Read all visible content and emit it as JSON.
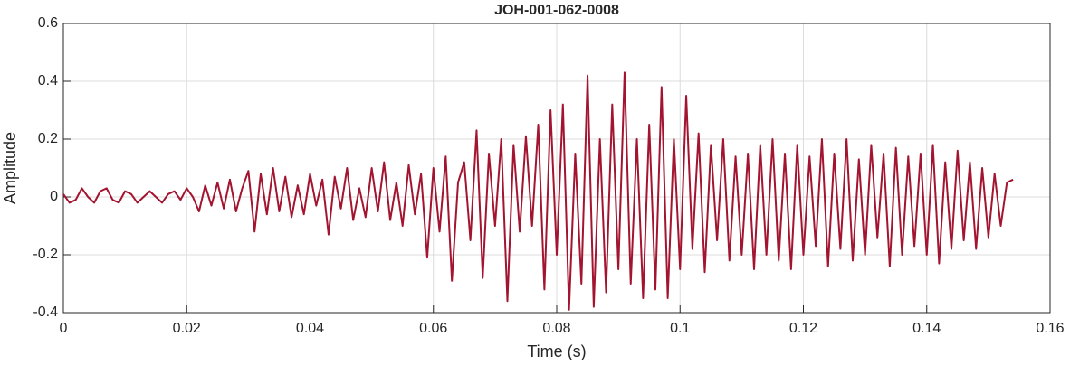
{
  "chart_data": {
    "type": "line",
    "title": "JOH-001-062-0008",
    "xlabel": "Time (s)",
    "ylabel": "Amplitude",
    "color": "#a2142f",
    "grid": true,
    "xlim": [
      0,
      0.16
    ],
    "xticks": [
      0,
      0.02,
      0.04,
      0.06,
      0.08,
      0.1,
      0.12,
      0.14,
      0.16
    ],
    "ylim": [
      -0.4,
      0.6
    ],
    "yticks": [
      -0.4,
      -0.2,
      0,
      0.2,
      0.4,
      0.6
    ],
    "x": [
      0,
      0.001,
      0.002,
      0.003,
      0.004,
      0.005,
      0.006,
      0.007,
      0.008,
      0.009,
      0.01,
      0.011,
      0.012,
      0.013,
      0.014,
      0.015,
      0.016,
      0.017,
      0.018,
      0.019,
      0.02,
      0.021,
      0.022,
      0.023,
      0.024,
      0.025,
      0.026,
      0.027,
      0.028,
      0.029,
      0.03,
      0.031,
      0.032,
      0.033,
      0.034,
      0.035,
      0.036,
      0.037,
      0.038,
      0.039,
      0.04,
      0.041,
      0.042,
      0.043,
      0.044,
      0.045,
      0.046,
      0.047,
      0.048,
      0.049,
      0.05,
      0.051,
      0.052,
      0.053,
      0.054,
      0.055,
      0.056,
      0.057,
      0.058,
      0.059,
      0.06,
      0.061,
      0.062,
      0.063,
      0.064,
      0.065,
      0.066,
      0.067,
      0.068,
      0.069,
      0.07,
      0.071,
      0.072,
      0.073,
      0.074,
      0.075,
      0.076,
      0.077,
      0.078,
      0.079,
      0.08,
      0.081,
      0.082,
      0.083,
      0.084,
      0.085,
      0.086,
      0.087,
      0.088,
      0.089,
      0.09,
      0.091,
      0.092,
      0.093,
      0.094,
      0.095,
      0.096,
      0.097,
      0.098,
      0.099,
      0.1,
      0.101,
      0.102,
      0.103,
      0.104,
      0.105,
      0.106,
      0.107,
      0.108,
      0.109,
      0.11,
      0.111,
      0.112,
      0.113,
      0.114,
      0.115,
      0.116,
      0.117,
      0.118,
      0.119,
      0.12,
      0.121,
      0.122,
      0.123,
      0.124,
      0.125,
      0.126,
      0.127,
      0.128,
      0.129,
      0.13,
      0.131,
      0.132,
      0.133,
      0.134,
      0.135,
      0.136,
      0.137,
      0.138,
      0.139,
      0.14,
      0.141,
      0.142,
      0.143,
      0.144,
      0.145,
      0.146,
      0.147,
      0.148,
      0.149,
      0.15,
      0.151,
      0.152,
      0.153,
      0.154
    ],
    "values": [
      0.01,
      -0.02,
      -0.01,
      0.03,
      0,
      -0.02,
      0.02,
      0.03,
      -0.01,
      -0.02,
      0.02,
      0.01,
      -0.02,
      0,
      0.02,
      0,
      -0.02,
      0.01,
      0.02,
      -0.01,
      0.03,
      0,
      -0.05,
      0.04,
      -0.03,
      0.05,
      -0.04,
      0.06,
      -0.05,
      0.03,
      0.09,
      -0.12,
      0.08,
      -0.06,
      0.1,
      -0.05,
      0.07,
      -0.07,
      0.04,
      -0.06,
      0.08,
      -0.03,
      0.06,
      -0.13,
      0.07,
      -0.04,
      0.1,
      -0.08,
      0.03,
      -0.07,
      0.1,
      -0.05,
      0.12,
      -0.08,
      0.05,
      -0.1,
      0.11,
      -0.06,
      0.08,
      -0.21,
      0.1,
      -0.12,
      0.14,
      -0.29,
      0.05,
      0.12,
      -0.15,
      0.23,
      -0.28,
      0.15,
      -0.1,
      0.2,
      -0.36,
      0.18,
      -0.12,
      0.21,
      -0.1,
      0.25,
      -0.32,
      0.3,
      -0.2,
      0.32,
      -0.39,
      0.15,
      -0.3,
      0.42,
      -0.38,
      0.2,
      -0.33,
      0.32,
      -0.25,
      0.43,
      -0.3,
      0.2,
      -0.35,
      0.25,
      -0.32,
      0.38,
      -0.35,
      0.2,
      -0.25,
      0.35,
      -0.18,
      0.22,
      -0.26,
      0.18,
      -0.15,
      0.2,
      -0.22,
      0.14,
      -0.2,
      0.15,
      -0.25,
      0.18,
      -0.2,
      0.2,
      -0.22,
      0.15,
      -0.25,
      0.18,
      -0.2,
      0.14,
      -0.17,
      0.2,
      -0.24,
      0.15,
      -0.18,
      0.2,
      -0.22,
      0.13,
      -0.2,
      0.18,
      -0.14,
      0.15,
      -0.24,
      0.17,
      -0.2,
      0.14,
      -0.17,
      0.15,
      -0.2,
      0.18,
      -0.23,
      0.12,
      -0.18,
      0.16,
      -0.15,
      0.12,
      -0.18,
      0.1,
      -0.14,
      0.08,
      -0.1,
      0.05,
      0.06
    ]
  }
}
